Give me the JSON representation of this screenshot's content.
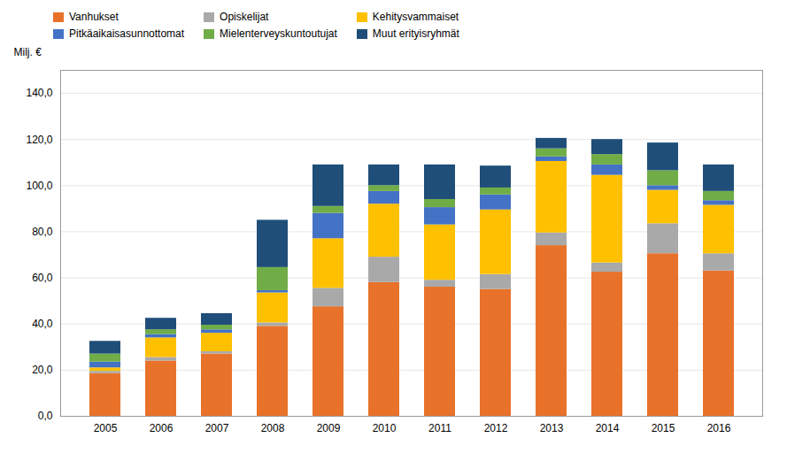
{
  "chart_data": {
    "type": "bar",
    "stacked": true,
    "categories": [
      "2005",
      "2006",
      "2007",
      "2008",
      "2009",
      "2010",
      "2011",
      "2012",
      "2013",
      "2014",
      "2015",
      "2016"
    ],
    "series": [
      {
        "name": "Vanhukset",
        "color": "#E8722A",
        "values": [
          18.5,
          24.0,
          27.0,
          39.0,
          47.5,
          58.0,
          56.0,
          55.0,
          74.0,
          62.5,
          70.5,
          63.0
        ]
      },
      {
        "name": "Opiskelijat",
        "color": "#A9A9A9",
        "values": [
          1.0,
          1.5,
          1.0,
          1.5,
          8.0,
          11.0,
          3.0,
          6.5,
          5.5,
          4.0,
          13.0,
          7.5
        ]
      },
      {
        "name": "Kehitysvammaiset",
        "color": "#FFC000",
        "values": [
          1.5,
          8.5,
          8.0,
          13.0,
          21.5,
          23.0,
          24.0,
          28.0,
          31.0,
          38.0,
          14.5,
          21.0
        ]
      },
      {
        "name": "Pitkäaikaisasunnottomat",
        "color": "#4472C4",
        "values": [
          2.5,
          1.5,
          1.5,
          1.0,
          11.0,
          5.5,
          7.5,
          6.5,
          2.0,
          4.5,
          2.0,
          2.0
        ]
      },
      {
        "name": "Mielenterveyskuntoutujat",
        "color": "#70AD47",
        "values": [
          3.5,
          2.0,
          2.0,
          10.0,
          3.0,
          2.5,
          3.5,
          3.0,
          3.5,
          4.5,
          6.5,
          4.0
        ]
      },
      {
        "name": "Muut erityisryhmät",
        "color": "#1F4E79",
        "values": [
          5.5,
          5.0,
          5.0,
          20.5,
          18.0,
          9.0,
          15.0,
          9.5,
          4.5,
          6.5,
          12.0,
          11.5
        ]
      }
    ],
    "ylabel": "Milj. €",
    "ylim": [
      0,
      150
    ],
    "yticks": [
      {
        "value": 0,
        "label": "0,0"
      },
      {
        "value": 20,
        "label": "20,0"
      },
      {
        "value": 40,
        "label": "40,0"
      },
      {
        "value": 60,
        "label": "60,0"
      },
      {
        "value": 80,
        "label": "80,0"
      },
      {
        "value": 100,
        "label": "100,0"
      },
      {
        "value": 120,
        "label": "120,0"
      },
      {
        "value": 140,
        "label": "140,0"
      }
    ],
    "grid": true,
    "legend": "upper left"
  }
}
